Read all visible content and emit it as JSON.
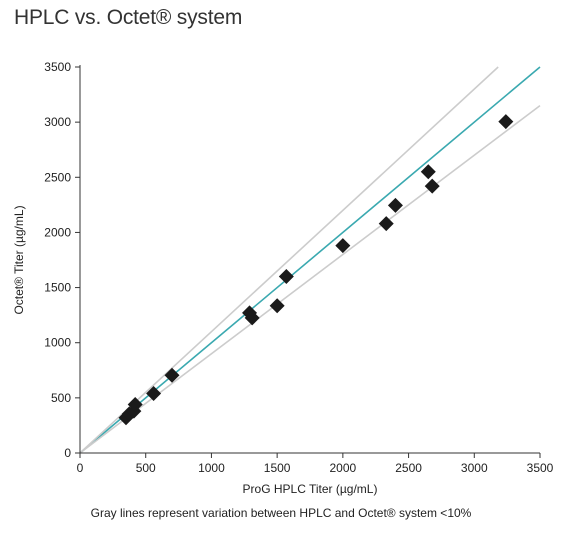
{
  "title": "HPLC vs. Octet® system",
  "caption": "Gray lines represent variation between HPLC and Octet® system <10%",
  "colors": {
    "identity_line": "#3aa9b0",
    "variation_lines": "#cccccc",
    "markers": "#1a1a1a",
    "axes": "#333333"
  },
  "chart_data": {
    "type": "scatter",
    "title": "HPLC vs. Octet® system",
    "xlabel": "ProG HPLC Titer (µg/mL)",
    "ylabel": "Octet® Titer (µg/mL)",
    "xlim": [
      0,
      3500
    ],
    "ylim": [
      0,
      3500
    ],
    "xticks": [
      0,
      500,
      1000,
      1500,
      2000,
      2500,
      3000,
      3500
    ],
    "yticks": [
      0,
      500,
      1000,
      1500,
      2000,
      2500,
      3000,
      3500
    ],
    "grid": false,
    "marker": "diamond",
    "points": [
      {
        "x": 350,
        "y": 320
      },
      {
        "x": 375,
        "y": 355
      },
      {
        "x": 410,
        "y": 380
      },
      {
        "x": 420,
        "y": 440
      },
      {
        "x": 560,
        "y": 540
      },
      {
        "x": 700,
        "y": 705
      },
      {
        "x": 1290,
        "y": 1270
      },
      {
        "x": 1310,
        "y": 1225
      },
      {
        "x": 1500,
        "y": 1335
      },
      {
        "x": 1570,
        "y": 1600
      },
      {
        "x": 2000,
        "y": 1880
      },
      {
        "x": 2330,
        "y": 2080
      },
      {
        "x": 2400,
        "y": 2245
      },
      {
        "x": 2650,
        "y": 2550
      },
      {
        "x": 2680,
        "y": 2420
      },
      {
        "x": 3240,
        "y": 3005
      }
    ],
    "reference_lines": [
      {
        "slope": 1.0,
        "style": "identity"
      },
      {
        "slope": 1.1,
        "style": "variation"
      },
      {
        "slope": 0.9,
        "style": "variation"
      }
    ]
  }
}
